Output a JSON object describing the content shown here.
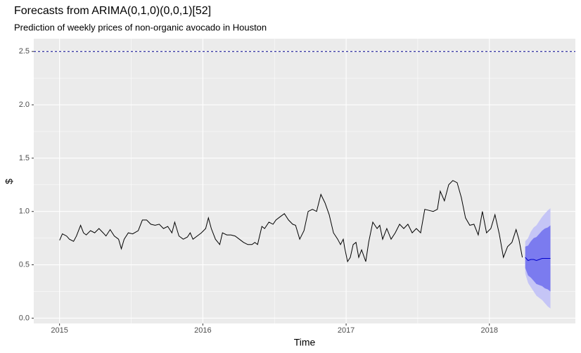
{
  "chart_data": {
    "type": "forecast",
    "title": "Forecasts from ARIMA(0,1,0)(0,0,1)[52]",
    "subtitle": "Prediction of weekly prices of non-organic avocado in Houston",
    "xlabel": "Time",
    "ylabel": "$",
    "xlim": [
      2014.82,
      2018.6
    ],
    "ylim": [
      -0.05,
      2.62
    ],
    "xticks": [
      2015,
      2016,
      2017,
      2018
    ],
    "yticks": [
      {
        "value": 0,
        "label": "0.0"
      },
      {
        "value": 0.5,
        "label": "0.5"
      },
      {
        "value": 1,
        "label": "1.0"
      },
      {
        "value": 1.5,
        "label": "1.5"
      },
      {
        "value": 2,
        "label": "2.0"
      },
      {
        "value": 2.5,
        "label": "2.5"
      }
    ],
    "grid": true,
    "hline": {
      "value": 2.5,
      "color": "#00008b"
    },
    "color": "#000000",
    "x": [
      2015.0,
      2015.02,
      2015.049,
      2015.069,
      2015.098,
      2015.118,
      2015.147,
      2015.167,
      2015.186,
      2015.216,
      2015.245,
      2015.275,
      2015.304,
      2015.324,
      2015.353,
      2015.382,
      2015.412,
      2015.431,
      2015.451,
      2015.48,
      2015.51,
      2015.549,
      2015.578,
      2015.608,
      2015.637,
      2015.667,
      2015.696,
      2015.725,
      2015.755,
      2015.784,
      2015.804,
      2015.833,
      2015.863,
      2015.892,
      2015.912,
      2015.931,
      2015.961,
      2015.99,
      2016.02,
      2016.039,
      2016.059,
      2016.088,
      2016.118,
      2016.137,
      2016.167,
      2016.196,
      2016.225,
      2016.255,
      2016.284,
      2016.314,
      2016.343,
      2016.363,
      2016.382,
      2016.412,
      2016.431,
      2016.461,
      2016.49,
      2016.51,
      2016.539,
      2016.569,
      2016.598,
      2016.627,
      2016.647,
      2016.676,
      2016.706,
      2016.735,
      2016.765,
      2016.794,
      2016.824,
      2016.853,
      2016.882,
      2016.912,
      2016.941,
      2016.961,
      2016.98,
      2016.99,
      2017.01,
      2017.029,
      2017.049,
      2017.069,
      2017.088,
      2017.108,
      2017.137,
      2017.157,
      2017.186,
      2017.216,
      2017.235,
      2017.255,
      2017.284,
      2017.314,
      2017.343,
      2017.373,
      2017.402,
      2017.431,
      2017.461,
      2017.49,
      2017.52,
      2017.549,
      2017.578,
      2017.608,
      2017.637,
      2017.657,
      2017.686,
      2017.716,
      2017.745,
      2017.775,
      2017.804,
      2017.833,
      2017.863,
      2017.892,
      2017.922,
      2017.951,
      2017.98,
      2018.01,
      2018.039,
      2018.069,
      2018.098,
      2018.127,
      2018.157,
      2018.186,
      2018.206,
      2018.23
    ],
    "values": [
      0.73,
      0.79,
      0.77,
      0.74,
      0.72,
      0.77,
      0.87,
      0.8,
      0.78,
      0.82,
      0.8,
      0.84,
      0.8,
      0.77,
      0.83,
      0.77,
      0.74,
      0.65,
      0.74,
      0.8,
      0.79,
      0.82,
      0.92,
      0.92,
      0.88,
      0.87,
      0.88,
      0.84,
      0.86,
      0.8,
      0.9,
      0.77,
      0.74,
      0.76,
      0.8,
      0.74,
      0.77,
      0.8,
      0.84,
      0.94,
      0.84,
      0.74,
      0.69,
      0.8,
      0.78,
      0.78,
      0.77,
      0.74,
      0.71,
      0.69,
      0.69,
      0.71,
      0.69,
      0.86,
      0.84,
      0.9,
      0.88,
      0.92,
      0.95,
      0.98,
      0.92,
      0.88,
      0.87,
      0.74,
      0.82,
      1.0,
      1.02,
      1.0,
      1.16,
      1.08,
      0.97,
      0.8,
      0.74,
      0.69,
      0.74,
      0.66,
      0.53,
      0.57,
      0.69,
      0.71,
      0.57,
      0.64,
      0.53,
      0.71,
      0.9,
      0.84,
      0.87,
      0.74,
      0.84,
      0.74,
      0.8,
      0.88,
      0.84,
      0.88,
      0.8,
      0.84,
      0.8,
      1.02,
      1.01,
      1.0,
      1.02,
      1.19,
      1.1,
      1.25,
      1.29,
      1.27,
      1.13,
      0.94,
      0.87,
      0.88,
      0.78,
      1.0,
      0.8,
      0.84,
      0.97,
      0.79,
      0.57,
      0.67,
      0.71,
      0.83,
      0.74,
      0.57
    ],
    "forecast": {
      "x": [
        2018.25,
        2018.27,
        2018.289,
        2018.309,
        2018.328,
        2018.348,
        2018.368,
        2018.387,
        2018.407,
        2018.426
      ],
      "mean": [
        0.57,
        0.54,
        0.55,
        0.55,
        0.54,
        0.55,
        0.56,
        0.56,
        0.56,
        0.56
      ],
      "lo80": [
        0.47,
        0.4,
        0.38,
        0.35,
        0.32,
        0.31,
        0.3,
        0.28,
        0.27,
        0.25
      ],
      "hi80": [
        0.67,
        0.68,
        0.72,
        0.75,
        0.76,
        0.79,
        0.82,
        0.84,
        0.85,
        0.87
      ],
      "lo95": [
        0.42,
        0.33,
        0.29,
        0.25,
        0.21,
        0.19,
        0.17,
        0.14,
        0.11,
        0.09
      ],
      "hi95": [
        0.72,
        0.75,
        0.81,
        0.85,
        0.87,
        0.91,
        0.95,
        0.98,
        1.01,
        1.03
      ],
      "mean_color": "#0000cc",
      "band80_color": "#7b7bef",
      "band95_color": "#c5c5f6"
    }
  }
}
